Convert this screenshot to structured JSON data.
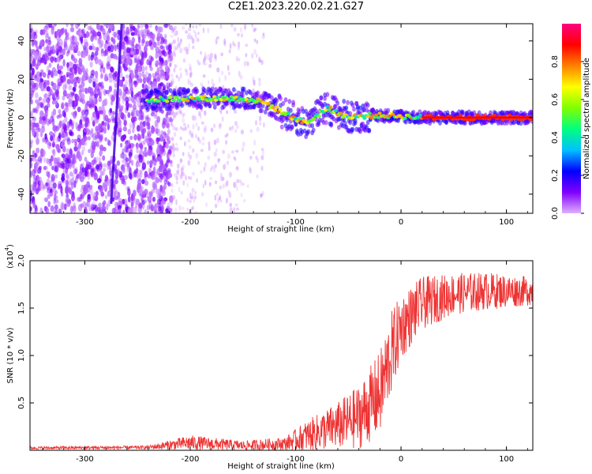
{
  "figure": {
    "title": "C2E1.2023.220.02.21.G27"
  },
  "chart_data": [
    {
      "type": "heatmap",
      "xlabel": "Height of straight line (km)",
      "ylabel": "Frequency (Hz)",
      "xlim": [
        -352,
        125
      ],
      "ylim": [
        -50,
        49
      ],
      "xticks": [
        -300,
        -200,
        -100,
        0,
        100
      ],
      "yticks": [
        -40,
        -20,
        0,
        20,
        40
      ],
      "colorbar": {
        "label": "Normalized spectral amplitude",
        "ticks": [
          0.0,
          0.2,
          0.4,
          0.6,
          0.8
        ],
        "range": [
          0,
          1
        ],
        "colormap": [
          "#e0b0ff",
          "#8000ff",
          "#0000ff",
          "#00c0ff",
          "#00ff80",
          "#80ff00",
          "#ffff00",
          "#ff8000",
          "#ff0000",
          "#ff0080"
        ]
      },
      "features": {
        "noise_region_x": [
          -352,
          -218
        ],
        "sparse_noise_x": [
          -218,
          -130
        ],
        "diagonal_streak": {
          "x": [
            -275,
            -265
          ],
          "y": [
            -45,
            49
          ]
        },
        "band_center": [
          {
            "x": -245,
            "y": 9
          },
          {
            "x": -200,
            "y": 10
          },
          {
            "x": -150,
            "y": 10
          },
          {
            "x": -130,
            "y": 8
          },
          {
            "x": -110,
            "y": 2
          },
          {
            "x": -90,
            "y": -3
          },
          {
            "x": -70,
            "y": 5
          },
          {
            "x": -50,
            "y": 0
          },
          {
            "x": -30,
            "y": 1
          },
          {
            "x": -10,
            "y": 1
          },
          {
            "x": 20,
            "y": 0
          },
          {
            "x": 125,
            "y": 0
          }
        ]
      }
    },
    {
      "type": "line",
      "xlabel": "Height of straight line (km)",
      "ylabel": "SNR (10 * v/v)",
      "scale_label": "(x10",
      "scale_exponent": "4",
      "scale_suffix": ")",
      "xlim": [
        -352,
        125
      ],
      "ylim": [
        0,
        20000
      ],
      "xticks": [
        -300,
        -200,
        -100,
        0,
        100
      ],
      "yticks": [
        5000,
        10000,
        15000,
        20000
      ],
      "ytick_labels": [
        "0.5",
        "1.0",
        "1.5",
        "2.0"
      ],
      "color": "#ee3333",
      "envelope": [
        {
          "x": -352,
          "mean": 250,
          "amp": 150
        },
        {
          "x": -240,
          "mean": 300,
          "amp": 200
        },
        {
          "x": -200,
          "mean": 800,
          "amp": 800
        },
        {
          "x": -150,
          "mean": 500,
          "amp": 500
        },
        {
          "x": -110,
          "mean": 700,
          "amp": 700
        },
        {
          "x": -90,
          "mean": 1500,
          "amp": 1600
        },
        {
          "x": -60,
          "mean": 2600,
          "amp": 2500
        },
        {
          "x": -40,
          "mean": 3500,
          "amp": 3400
        },
        {
          "x": -20,
          "mean": 6000,
          "amp": 4500
        },
        {
          "x": -10,
          "mean": 10000,
          "amp": 4500
        },
        {
          "x": 0,
          "mean": 13000,
          "amp": 3500
        },
        {
          "x": 20,
          "mean": 15500,
          "amp": 2800
        },
        {
          "x": 50,
          "mean": 16500,
          "amp": 2200
        },
        {
          "x": 80,
          "mean": 16800,
          "amp": 2000
        },
        {
          "x": 125,
          "mean": 16800,
          "amp": 1500
        }
      ]
    }
  ]
}
